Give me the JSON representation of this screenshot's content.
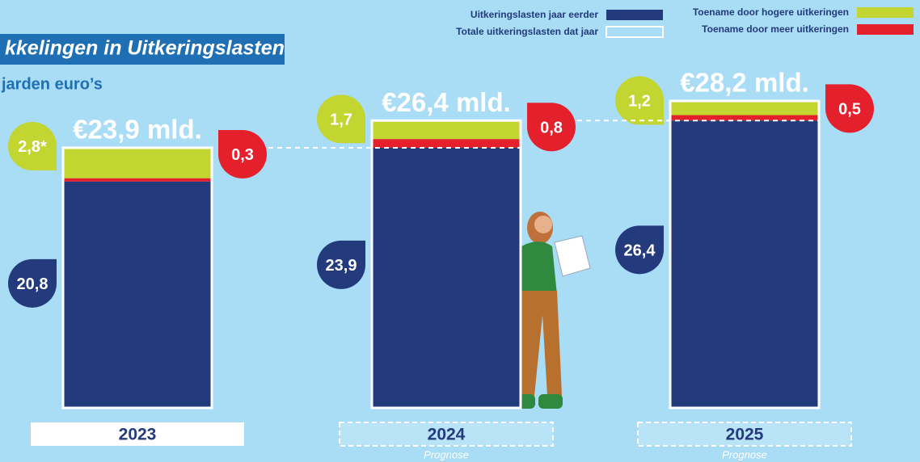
{
  "chart_data": {
    "type": "stacked-bar",
    "title": "kkelingen in Uitkeringslasten",
    "subtitle": "jarden euro’s",
    "categories": [
      "2023",
      "2024",
      "2025"
    ],
    "sublabels": [
      null,
      "Prognose",
      "Prognose"
    ],
    "series": [
      {
        "name": "Uitkeringslasten jaar eerder",
        "color": "#233a7d",
        "values": [
          20.8,
          23.9,
          26.4
        ],
        "value_labels": [
          "20,8",
          "23,9",
          "26,4"
        ]
      },
      {
        "name": "Toename door meer uitkeringen",
        "color": "#e3202b",
        "values": [
          0.3,
          0.8,
          0.5
        ],
        "value_labels": [
          "0,3",
          "0,8",
          "0,5"
        ]
      },
      {
        "name": "Toename door hogere uitkeringen",
        "color": "#c3d530",
        "values": [
          2.8,
          1.7,
          1.2
        ],
        "value_labels": [
          "2,8*",
          "1,7",
          "1,2"
        ]
      }
    ],
    "totals": {
      "name": "Totale uitkeringslasten dat jaar",
      "values": [
        23.9,
        26.4,
        28.2
      ],
      "value_labels": [
        "€23,9 mld.",
        "€26,4 mld.",
        "€28,2 mld."
      ]
    }
  }
}
